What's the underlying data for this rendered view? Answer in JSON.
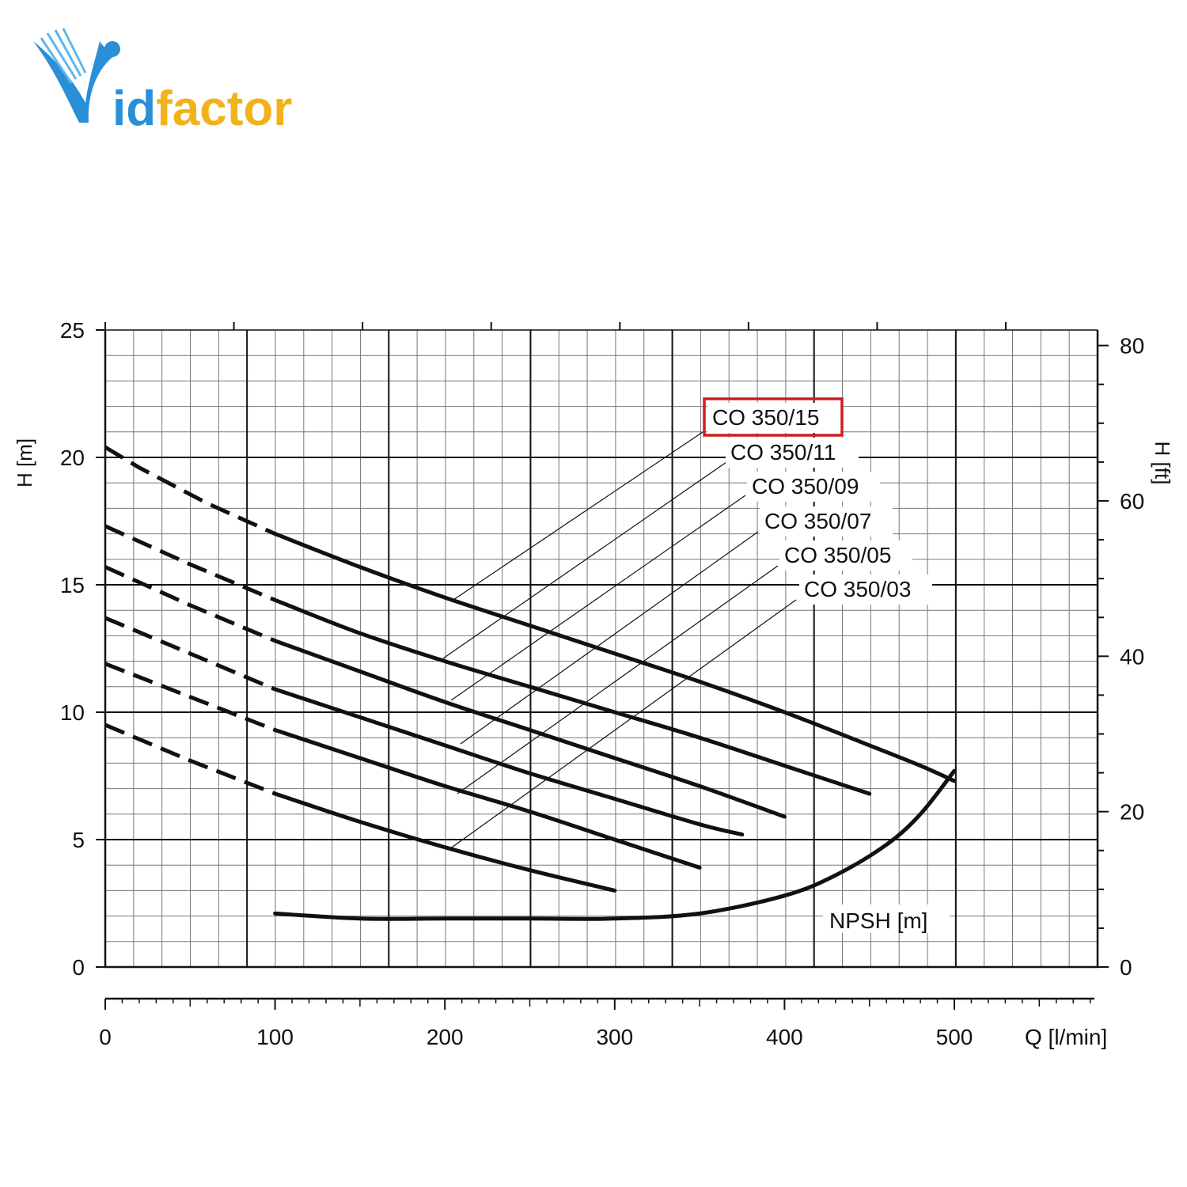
{
  "logo": {
    "text_v": "V",
    "text_rest": "idfactor",
    "color_primary": "#2a8fd6",
    "color_accent": "#f2b21b"
  },
  "chart_data": {
    "type": "line",
    "xlabel": "Q [l/min]",
    "ylabel": "H [m]",
    "y2label": "H [ft]",
    "xlim": [
      0,
      580
    ],
    "ylim": [
      0,
      25
    ],
    "y2lim": [
      0,
      82
    ],
    "x_ticks": [
      0,
      100,
      200,
      300,
      400,
      500
    ],
    "x_tick_labels": [
      "0",
      "100",
      "200",
      "300",
      "400",
      "500"
    ],
    "y_ticks": [
      0,
      5,
      10,
      15,
      20,
      25
    ],
    "y_tick_labels": [
      "0",
      "5",
      "10",
      "15",
      "20",
      "25"
    ],
    "y2_ticks": [
      0,
      20,
      40,
      60,
      80
    ],
    "y2_tick_labels": [
      "0",
      "20",
      "40",
      "60",
      "80"
    ],
    "grid": true,
    "highlight_color": "#cc1f1f",
    "series": [
      {
        "name": "CO 350/15",
        "highlighted": true,
        "dashed_x": [
          0,
          20,
          40,
          60,
          80,
          100
        ],
        "dashed_y": [
          20.4,
          19.6,
          18.9,
          18.2,
          17.6,
          17.0
        ],
        "x": [
          100,
          150,
          200,
          250,
          300,
          350,
          400,
          450,
          480,
          500
        ],
        "y": [
          17.0,
          15.7,
          14.5,
          13.4,
          12.3,
          11.2,
          10.0,
          8.7,
          7.9,
          7.3
        ]
      },
      {
        "name": "CO 350/11",
        "highlighted": false,
        "dashed_x": [
          0,
          50,
          100
        ],
        "dashed_y": [
          17.3,
          15.8,
          14.4
        ],
        "x": [
          100,
          150,
          200,
          250,
          300,
          350,
          400,
          450
        ],
        "y": [
          14.4,
          13.1,
          12.0,
          11.0,
          10.0,
          9.0,
          7.9,
          6.8
        ]
      },
      {
        "name": "CO 350/09",
        "highlighted": false,
        "dashed_x": [
          0,
          50,
          100
        ],
        "dashed_y": [
          15.7,
          14.2,
          12.8
        ],
        "x": [
          100,
          150,
          200,
          250,
          300,
          350,
          400
        ],
        "y": [
          12.8,
          11.6,
          10.4,
          9.3,
          8.2,
          7.1,
          5.9
        ]
      },
      {
        "name": "CO 350/07",
        "highlighted": false,
        "dashed_x": [
          0,
          50,
          100
        ],
        "dashed_y": [
          13.7,
          12.3,
          10.9
        ],
        "x": [
          100,
          150,
          200,
          250,
          300,
          350,
          375
        ],
        "y": [
          10.9,
          9.8,
          8.7,
          7.6,
          6.6,
          5.6,
          5.2
        ]
      },
      {
        "name": "CO 350/05",
        "highlighted": false,
        "dashed_x": [
          0,
          50,
          100
        ],
        "dashed_y": [
          11.9,
          10.6,
          9.3
        ],
        "x": [
          100,
          150,
          200,
          250,
          300,
          350
        ],
        "y": [
          9.3,
          8.2,
          7.1,
          6.1,
          5.0,
          3.9
        ]
      },
      {
        "name": "CO 350/03",
        "highlighted": false,
        "dashed_x": [
          0,
          50,
          100
        ],
        "dashed_y": [
          9.5,
          8.1,
          6.8
        ],
        "x": [
          100,
          150,
          200,
          250,
          300
        ],
        "y": [
          6.8,
          5.7,
          4.7,
          3.8,
          3.0
        ]
      }
    ],
    "npsh": {
      "name": "NPSH [m]",
      "x": [
        100,
        150,
        200,
        250,
        300,
        350,
        400,
        430,
        460,
        480,
        500
      ],
      "y": [
        2.1,
        1.9,
        1.9,
        1.9,
        1.9,
        2.1,
        2.8,
        3.6,
        4.8,
        6.0,
        7.7
      ]
    }
  }
}
